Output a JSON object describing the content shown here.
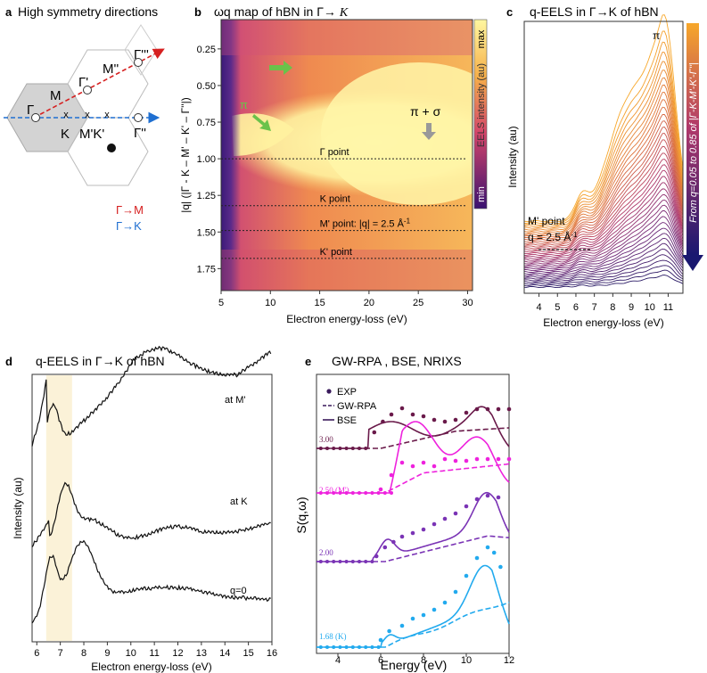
{
  "colors": {
    "red_dir": "#d62020",
    "blue_dir": "#1f6fd1",
    "green_arrow": "#6ac24a",
    "grey_arrow": "#999999",
    "exp": "#3a1a5c",
    "s300": "#6a1a4a",
    "s250": "#ee22dd",
    "s200": "#7a33b5",
    "s168": "#22aaee"
  },
  "panel_a": {
    "letter": "a",
    "title": "High symmetry directions",
    "points": {
      "gamma": "Γ",
      "gamma1": "Γ'",
      "gamma2": "Γ''",
      "gamma3": "Γ'''",
      "m": "M",
      "m2": "M''",
      "k": "K",
      "mk": "M'K'"
    },
    "legend_gm": "Γ→M",
    "legend_gk": "Γ→K"
  },
  "panel_b": {
    "letter": "b",
    "title": "ωq map of hBN in Γ→ ",
    "title_k": "K",
    "xlabel": "Electron energy-loss (eV)",
    "ylabel": "|q| (|Γ - K – M' – K' – Γ''|)",
    "xticks": [
      "5",
      "10",
      "15",
      "20",
      "25",
      "30"
    ],
    "yticks": [
      "0.25",
      "0.50",
      "0.75",
      "1.00",
      "1.25",
      "1.50",
      "1.75"
    ],
    "colorbar_label": "EELS intensity (au)",
    "cb_max": "max",
    "cb_min": "min",
    "pi": "π",
    "pisigma": "π + σ",
    "lines": [
      {
        "label": "Γ point",
        "q": 1.0
      },
      {
        "label": "K point",
        "q": 1.32
      },
      {
        "label": "M' point: |q| = 2.5 Å",
        "q": 1.49,
        "sup": "-1"
      },
      {
        "label": "K' point",
        "q": 1.68
      }
    ]
  },
  "panel_c": {
    "letter": "c",
    "title": "q-EELS in Γ→K of hBN",
    "ylabel": "Intensity (au)",
    "xlabel": "Electron energy-loss (eV)",
    "xticks": [
      "4",
      "5",
      "6",
      "7",
      "8",
      "9",
      "10",
      "11"
    ],
    "pi": "π",
    "mpoint": "M' point",
    "q_eq": "q = 2.5 Å",
    "q_sup": "-1",
    "side_label": "From q=0.05 to 0.85 of |Γ-K-M'-K'-Γ''|"
  },
  "panel_d": {
    "letter": "d",
    "title": "q-EELS in Γ→K of hBN",
    "ylabel": "Intensity (au)",
    "xlabel": "Electron energy-loss (eV)",
    "xticks": [
      "6",
      "7",
      "8",
      "9",
      "10",
      "11",
      "12",
      "13",
      "14",
      "15",
      "16"
    ],
    "curves": [
      "at M'",
      "at K",
      "q=0"
    ]
  },
  "panel_e": {
    "letter": "e",
    "title": "GW-RPA , BSE, NRIXS",
    "xlabel": "Energy (eV)",
    "ylabel": "S(q,ω)",
    "xticks": [
      "4",
      "6",
      "8",
      "10",
      "12"
    ],
    "legend": [
      "EXP",
      "GW-RPA",
      "BSE"
    ],
    "curves": [
      "3.00",
      "2.50 (M')",
      "2.00",
      "1.68 (K)"
    ]
  }
}
